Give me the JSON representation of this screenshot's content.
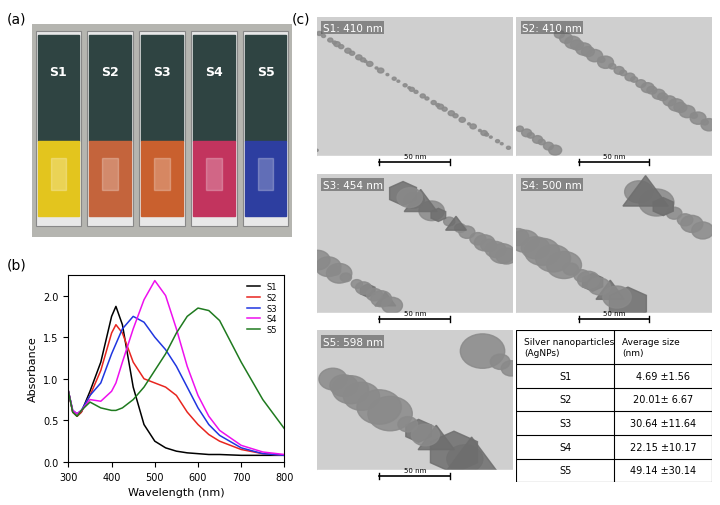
{
  "panel_labels": [
    "(a)",
    "(b)",
    "(c)"
  ],
  "photo": {
    "cuvettes": [
      {
        "label": "S1",
        "color": "#e3c51e"
      },
      {
        "label": "S2",
        "color": "#c4643c"
      },
      {
        "label": "S3",
        "color": "#c9602e"
      },
      {
        "label": "S4",
        "color": "#c2345e"
      },
      {
        "label": "S5",
        "color": "#2d3ea0"
      }
    ]
  },
  "chart_data": {
    "type": "line",
    "x_label": "Wavelength (nm)",
    "y_label": "Absorbance",
    "x": [
      300,
      310,
      320,
      330,
      350,
      375,
      400,
      410,
      425,
      450,
      475,
      500,
      525,
      550,
      575,
      600,
      625,
      650,
      700,
      750,
      800
    ],
    "series": [
      {
        "name": "S1",
        "color": "#000000",
        "values": [
          0.85,
          0.6,
          0.55,
          0.6,
          0.85,
          1.2,
          1.75,
          1.87,
          1.65,
          0.9,
          0.45,
          0.25,
          0.17,
          0.13,
          0.11,
          0.1,
          0.09,
          0.09,
          0.08,
          0.08,
          0.08
        ]
      },
      {
        "name": "S2",
        "color": "#e8251f",
        "values": [
          0.85,
          0.6,
          0.55,
          0.6,
          0.8,
          1.1,
          1.55,
          1.65,
          1.55,
          1.2,
          1.0,
          0.95,
          0.9,
          0.8,
          0.6,
          0.45,
          0.33,
          0.25,
          0.15,
          0.1,
          0.08
        ]
      },
      {
        "name": "S3",
        "color": "#2036e0",
        "values": [
          0.85,
          0.62,
          0.58,
          0.62,
          0.8,
          0.95,
          1.3,
          1.42,
          1.6,
          1.75,
          1.68,
          1.5,
          1.35,
          1.15,
          0.9,
          0.65,
          0.45,
          0.32,
          0.17,
          0.1,
          0.08
        ]
      },
      {
        "name": "S4",
        "color": "#ee10ee",
        "values": [
          0.85,
          0.62,
          0.58,
          0.62,
          0.75,
          0.73,
          0.85,
          0.95,
          1.2,
          1.6,
          1.95,
          2.18,
          2.0,
          1.6,
          1.15,
          0.8,
          0.55,
          0.38,
          0.2,
          0.12,
          0.09
        ]
      },
      {
        "name": "S5",
        "color": "#1f7a1f",
        "values": [
          0.85,
          0.6,
          0.55,
          0.62,
          0.72,
          0.65,
          0.62,
          0.62,
          0.65,
          0.75,
          0.9,
          1.1,
          1.3,
          1.55,
          1.75,
          1.85,
          1.82,
          1.7,
          1.2,
          0.75,
          0.4
        ]
      }
    ],
    "xlim": [
      300,
      800
    ],
    "xticks": [
      300,
      400,
      500,
      600,
      700,
      800
    ],
    "ylim": [
      0,
      2.25
    ],
    "yticks": [
      {
        "value": 0,
        "label": "0.0"
      },
      0.5,
      {
        "value": 1,
        "label": "1.0"
      },
      1.5,
      {
        "value": 2,
        "label": "2.0"
      }
    ],
    "legend": "upper right"
  },
  "tem": {
    "images": [
      {
        "label": "S1: 410 nm",
        "scale_bar": "50 nm"
      },
      {
        "label": "S2: 410 nm",
        "scale_bar": "50 nm"
      },
      {
        "label": "S3: 454 nm",
        "scale_bar": "50 nm"
      },
      {
        "label": "S4: 500 nm",
        "scale_bar": "50 nm"
      },
      {
        "label": "S5: 598 nm",
        "scale_bar": "50 nm"
      }
    ]
  },
  "table": {
    "header": [
      "Silver nanoparticles\n(AgNPs)",
      "Average size\n(nm)"
    ],
    "rows": [
      [
        "S1",
        "4.69 ±1.56"
      ],
      [
        "S2",
        "20.01± 6.67"
      ],
      [
        "S3",
        "30.64 ±11.64"
      ],
      [
        "S4",
        "22.15 ±10.17"
      ],
      [
        "S5",
        "49.14 ±30.14"
      ]
    ]
  }
}
